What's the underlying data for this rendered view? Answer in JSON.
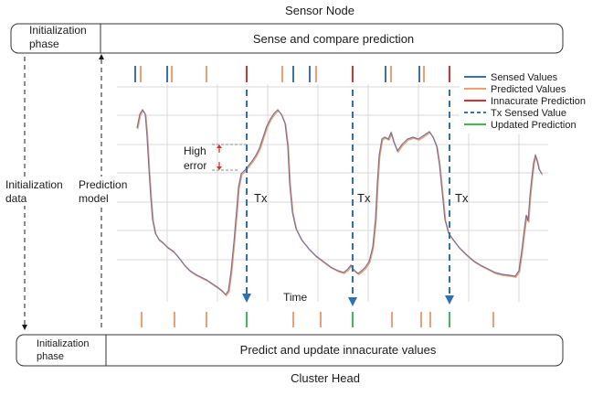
{
  "top_title": "Sensor Node",
  "bottom_title": "Cluster Head",
  "top_bar": {
    "phase_line1": "Initialization",
    "phase_line2": "phase",
    "main": "Sense and compare prediction"
  },
  "bottom_bar": {
    "phase_line1": "Initialization",
    "phase_line2": "phase",
    "main": "Predict and update innacurate values"
  },
  "side_labels": {
    "init_data_1": "Initialization",
    "init_data_2": "data",
    "pred_model_1": "Prediction",
    "pred_model_2": "model"
  },
  "annotations": {
    "high": "High",
    "error": "error",
    "tx": "Tx",
    "time": "Time"
  },
  "legend": [
    {
      "label": "Sensed Values",
      "color": "#3a6fb0",
      "style": "solid"
    },
    {
      "label": "Predicted Values",
      "color": "#f0a070",
      "style": "solid"
    },
    {
      "label": "Innacurate Prediction",
      "color": "#d9312b",
      "style": "solid"
    },
    {
      "label": "Tx Sensed Value",
      "color": "#3a6fb0",
      "style": "dashed"
    },
    {
      "label": "Updated Prediction",
      "color": "#3fba5a",
      "style": "solid"
    }
  ],
  "colors": {
    "sensed": "#3a6fb0",
    "predicted": "#f0a070",
    "inaccurate": "#d9312b",
    "updated": "#3fba5a",
    "tx": "#2f6fb7",
    "grid": "#d8d8d8"
  },
  "top_ticks": [
    {
      "kind": "sensed"
    },
    {
      "kind": "predicted"
    },
    {
      "kind": "sensed"
    },
    {
      "kind": "predicted"
    },
    {
      "kind": "predicted"
    },
    {
      "kind": "inaccurate"
    },
    {
      "kind": "predicted"
    },
    {
      "kind": "sensed"
    },
    {
      "kind": "sensed"
    },
    {
      "kind": "predicted"
    },
    {
      "kind": "inaccurate"
    },
    {
      "kind": "sensed"
    },
    {
      "kind": "predicted"
    },
    {
      "kind": "sensed"
    },
    {
      "kind": "predicted"
    },
    {
      "kind": "inaccurate"
    }
  ],
  "bottom_ticks": [
    {
      "kind": "predicted"
    },
    {
      "kind": "predicted"
    },
    {
      "kind": "predicted"
    },
    {
      "kind": "updated"
    },
    {
      "kind": "predicted"
    },
    {
      "kind": "predicted"
    },
    {
      "kind": "updated"
    },
    {
      "kind": "predicted"
    },
    {
      "kind": "predicted"
    },
    {
      "kind": "predicted"
    },
    {
      "kind": "updated"
    },
    {
      "kind": "predicted"
    }
  ]
}
